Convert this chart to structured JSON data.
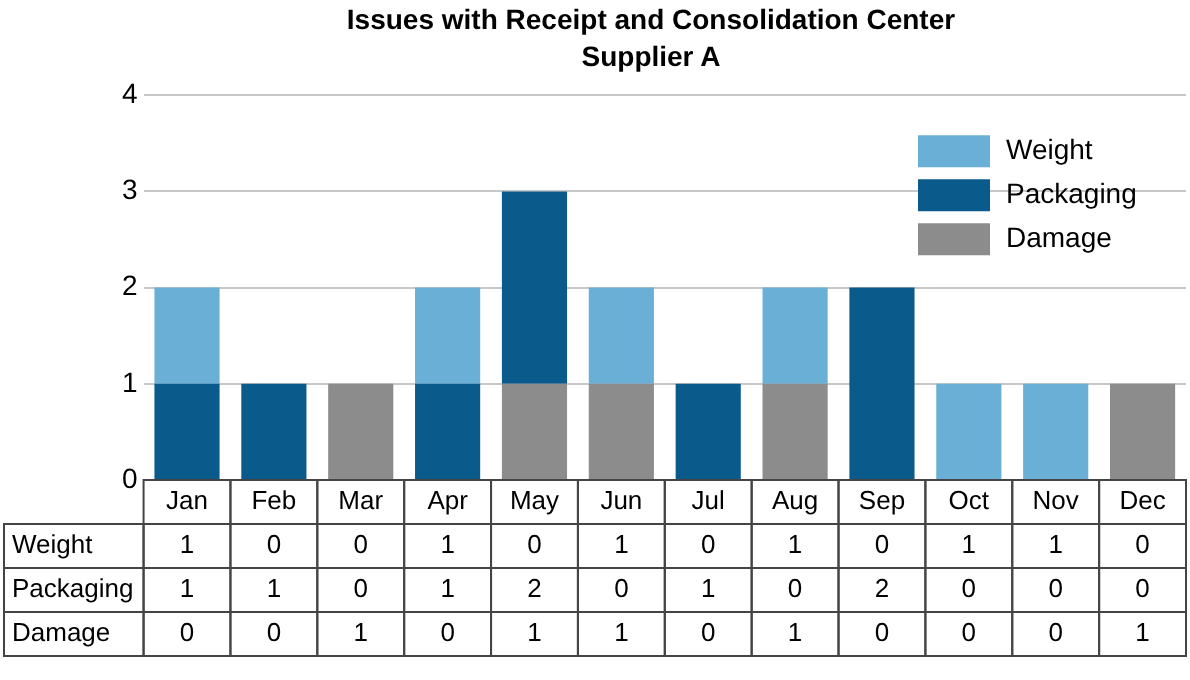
{
  "chart_data": {
    "type": "bar",
    "title": "Issues with Receipt and Consolidation Center",
    "subtitle": "Supplier A",
    "categories": [
      "Jan",
      "Feb",
      "Mar",
      "Apr",
      "May",
      "Jun",
      "Jul",
      "Aug",
      "Sep",
      "Oct",
      "Nov",
      "Dec"
    ],
    "series": [
      {
        "name": "Damage",
        "color": "#8c8c8c",
        "values": [
          0,
          0,
          1,
          0,
          1,
          1,
          0,
          1,
          0,
          0,
          0,
          1
        ]
      },
      {
        "name": "Packaging",
        "color": "#0b5a8c",
        "values": [
          1,
          1,
          0,
          1,
          2,
          0,
          1,
          0,
          2,
          0,
          0,
          0
        ]
      },
      {
        "name": "Weight",
        "color": "#6aafd6",
        "values": [
          1,
          0,
          0,
          1,
          0,
          1,
          0,
          1,
          0,
          1,
          1,
          0
        ]
      }
    ],
    "stacked": true,
    "ylim": [
      0,
      4
    ],
    "yticks": [
      0,
      1,
      2,
      3,
      4
    ],
    "grid": "y",
    "legend": "top right",
    "data_labels": true
  }
}
